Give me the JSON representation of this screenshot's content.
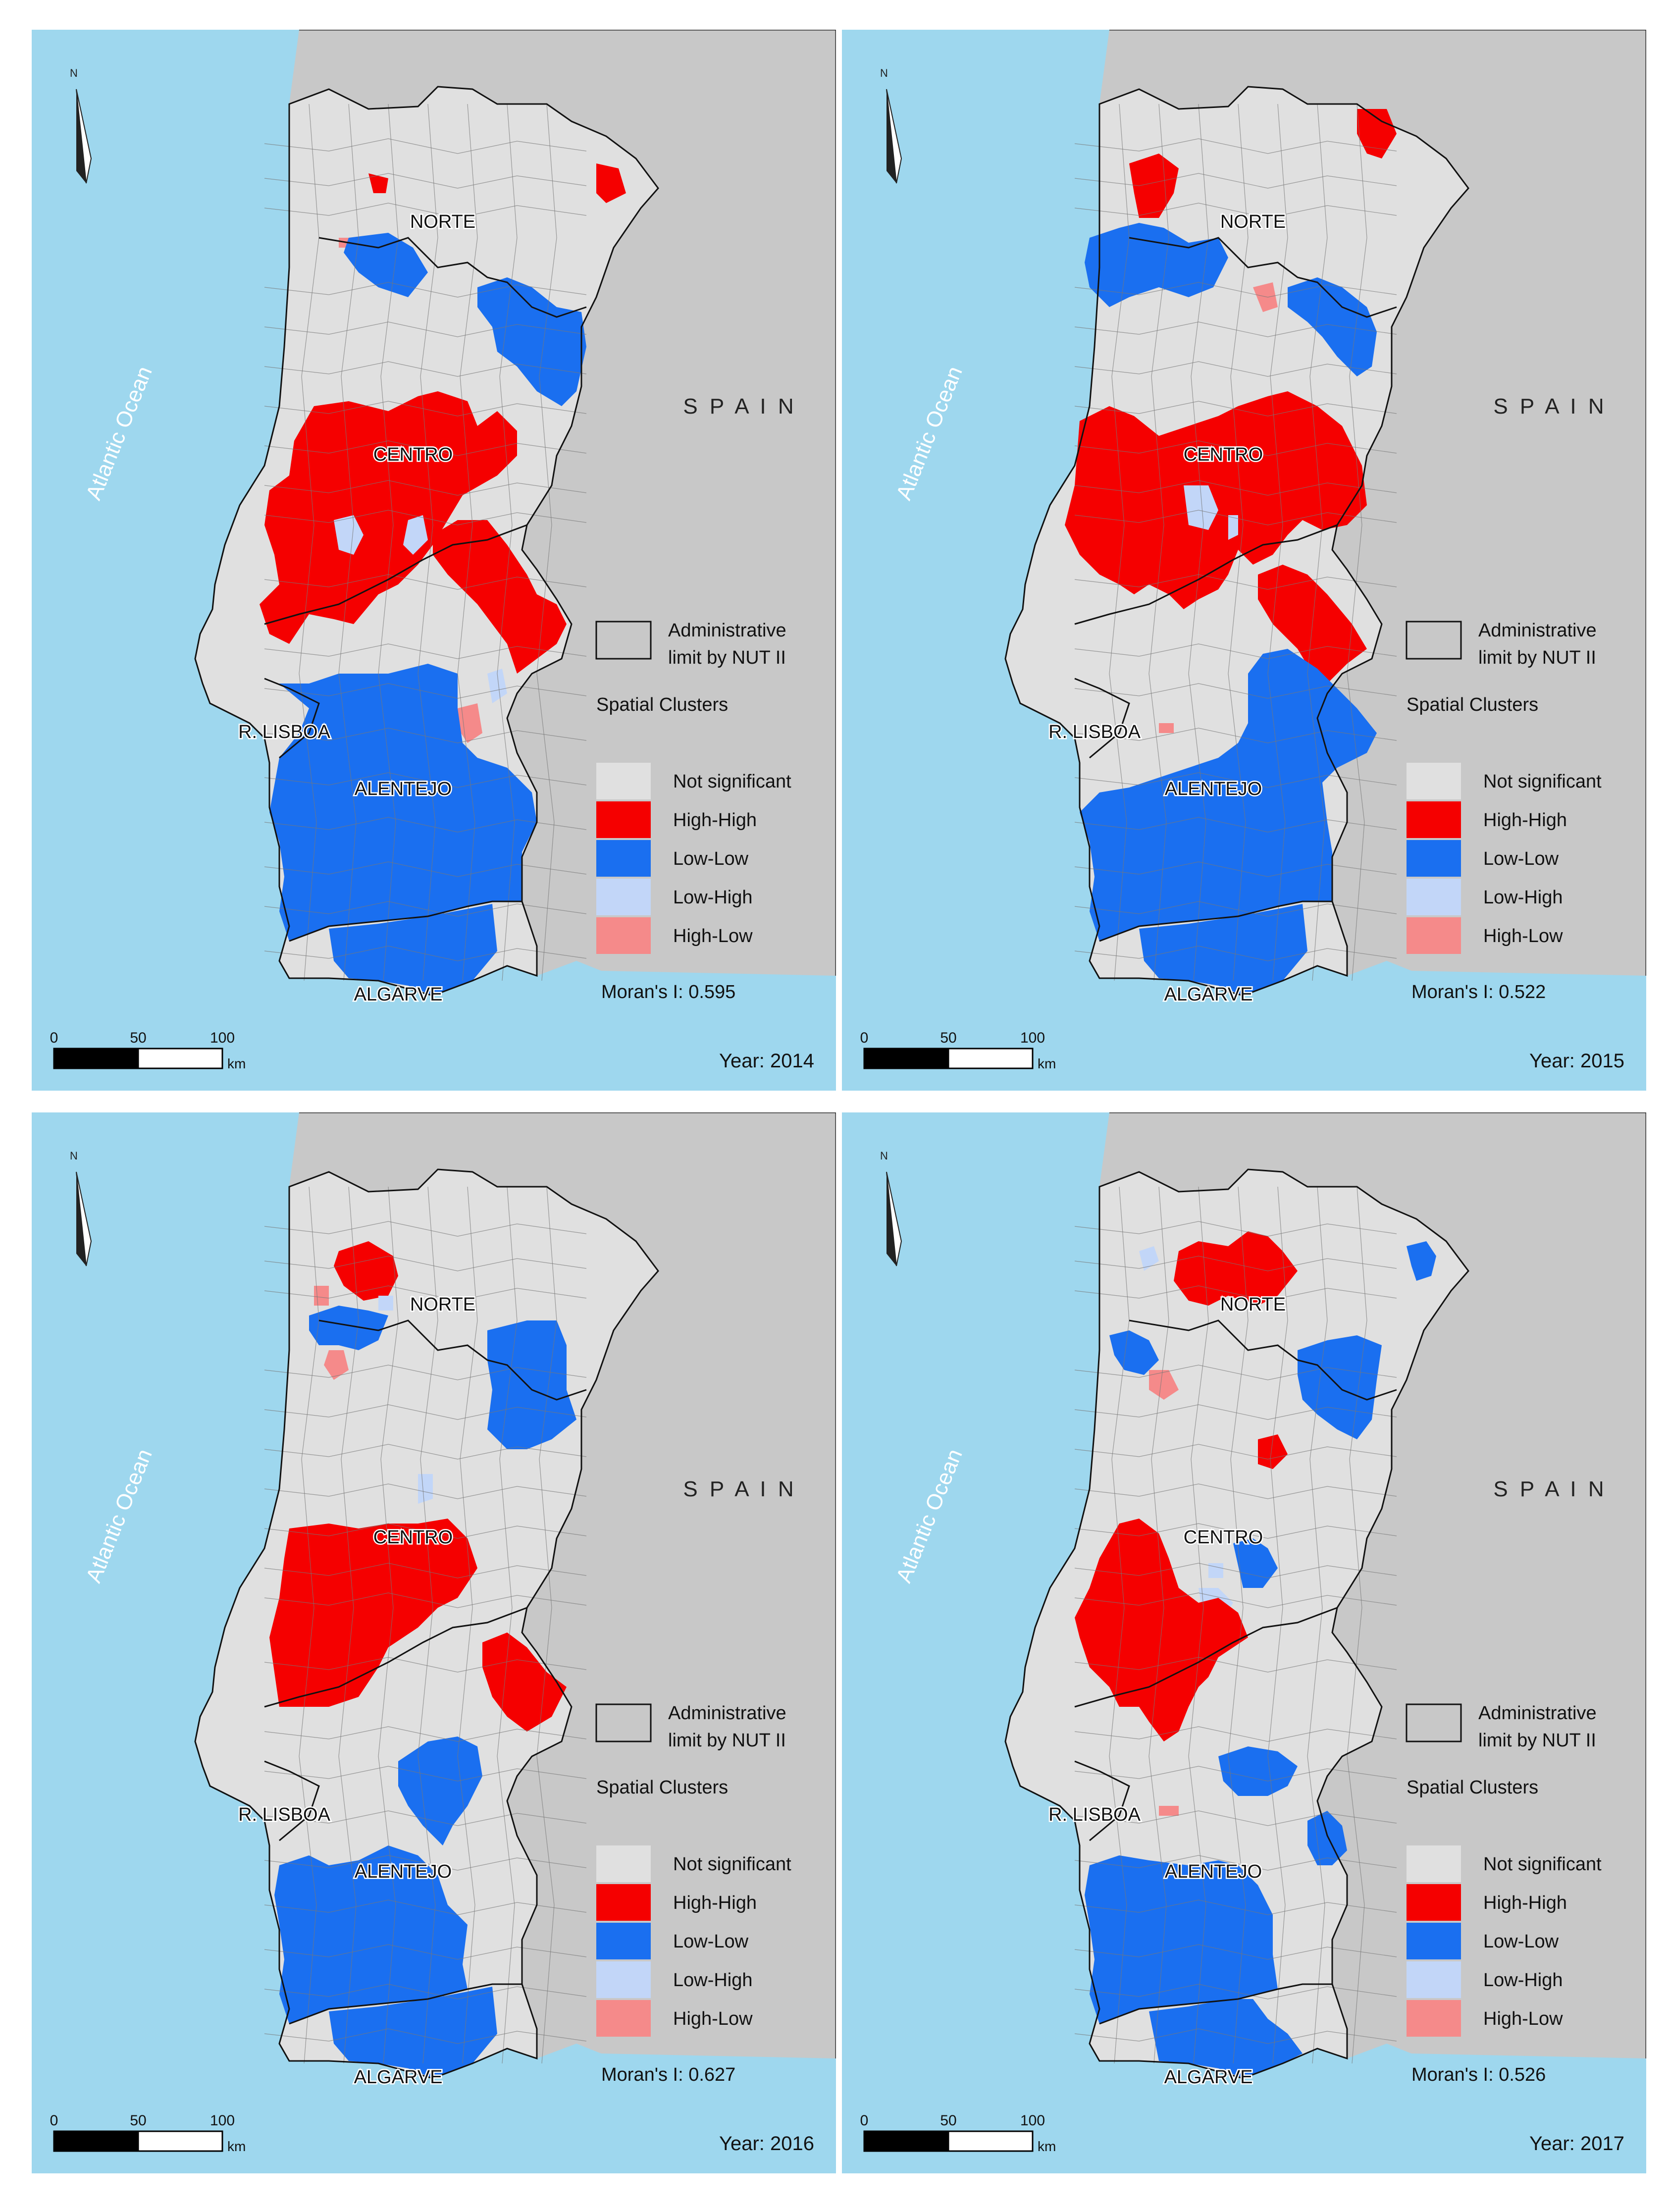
{
  "colors": {
    "ocean": "#9ed7ee",
    "land": "#c8c8c8",
    "not_significant": "#e0e0e0",
    "high_high": "#f50000",
    "low_low": "#1a6ff0",
    "low_high": "#c2d6f8",
    "high_low": "#f58a8a",
    "boundary": "#111111"
  },
  "common": {
    "ocean_label": "Atlantic Ocean",
    "spain_label": "S P A I N",
    "north_label": "N",
    "regions": {
      "norte": "NORTE",
      "centro": "CENTRO",
      "lisboa": "R. LISBOA",
      "alentejo": "ALENTEJO",
      "algarve": "ALGARVE"
    },
    "legend": {
      "admin_line1": "Administrative",
      "admin_line2": "limit by NUT II",
      "title": "Spatial Clusters",
      "items": [
        "Not significant",
        "High-High",
        "Low-Low",
        "Low-High",
        "High-Low"
      ]
    },
    "scale": {
      "ticks": [
        "0",
        "50",
        "100"
      ],
      "unit": "km"
    },
    "morans_prefix": "Moran's I: ",
    "year_prefix": "Year: "
  },
  "panels": [
    {
      "year": "2014",
      "morans_i": "0.595",
      "year_text": "Year: 2014",
      "morans_text": "Moran's I: 0.595"
    },
    {
      "year": "2015",
      "morans_i": "0.522",
      "year_text": "Year: 2015",
      "morans_text": "Moran's I: 0.522"
    },
    {
      "year": "2016",
      "morans_i": "0.627",
      "year_text": "Year: 2016",
      "morans_text": "Moran's I: 0.627"
    },
    {
      "year": "2017",
      "morans_i": "0.526",
      "year_text": "Year: 2017",
      "morans_text": "Moran's I: 0.526"
    }
  ]
}
